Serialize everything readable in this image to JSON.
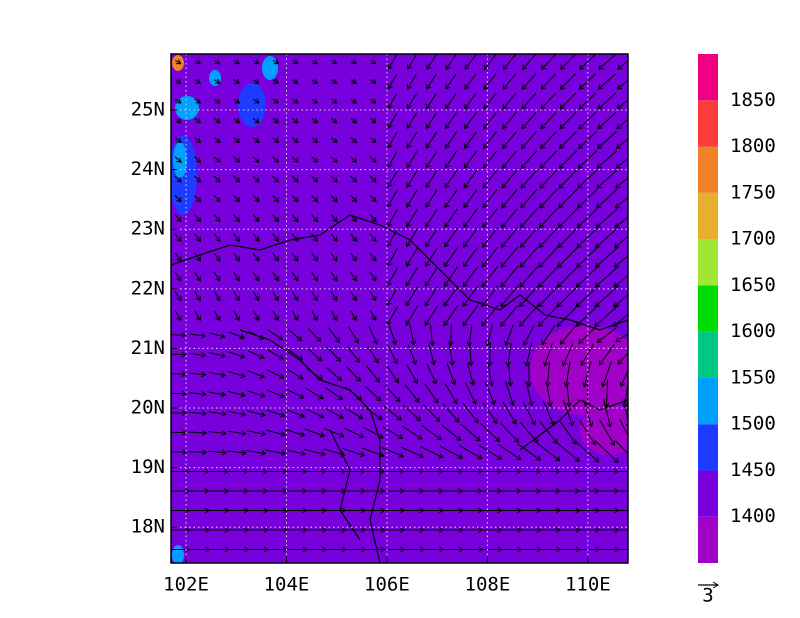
{
  "map": {
    "lon_ticks": [
      {
        "value": 102,
        "label": "102E"
      },
      {
        "value": 104,
        "label": "104E"
      },
      {
        "value": 106,
        "label": "106E"
      },
      {
        "value": 108,
        "label": "108E"
      },
      {
        "value": 110,
        "label": "110E"
      }
    ],
    "lat_ticks": [
      {
        "value": 18,
        "label": "18N"
      },
      {
        "value": 19,
        "label": "19N"
      },
      {
        "value": 20,
        "label": "20N"
      },
      {
        "value": 21,
        "label": "21N"
      },
      {
        "value": 22,
        "label": "22N"
      },
      {
        "value": 23,
        "label": "23N"
      },
      {
        "value": 24,
        "label": "24N"
      },
      {
        "value": 25,
        "label": "25N"
      }
    ],
    "lonlim": [
      101.7,
      110.8
    ],
    "latlim": [
      17.4,
      25.94
    ],
    "grid": true
  },
  "colorbar": {
    "levels": [
      1400,
      1450,
      1500,
      1550,
      1600,
      1650,
      1700,
      1750,
      1800,
      1850
    ],
    "colors": [
      "#a000c8",
      "#7800dc",
      "#1e3cff",
      "#00a0ff",
      "#00c882",
      "#00dc00",
      "#a0e632",
      "#e6af2d",
      "#f08228",
      "#fa3c3c",
      "#f00082"
    ]
  },
  "vector_scale": {
    "label": "3"
  }
}
